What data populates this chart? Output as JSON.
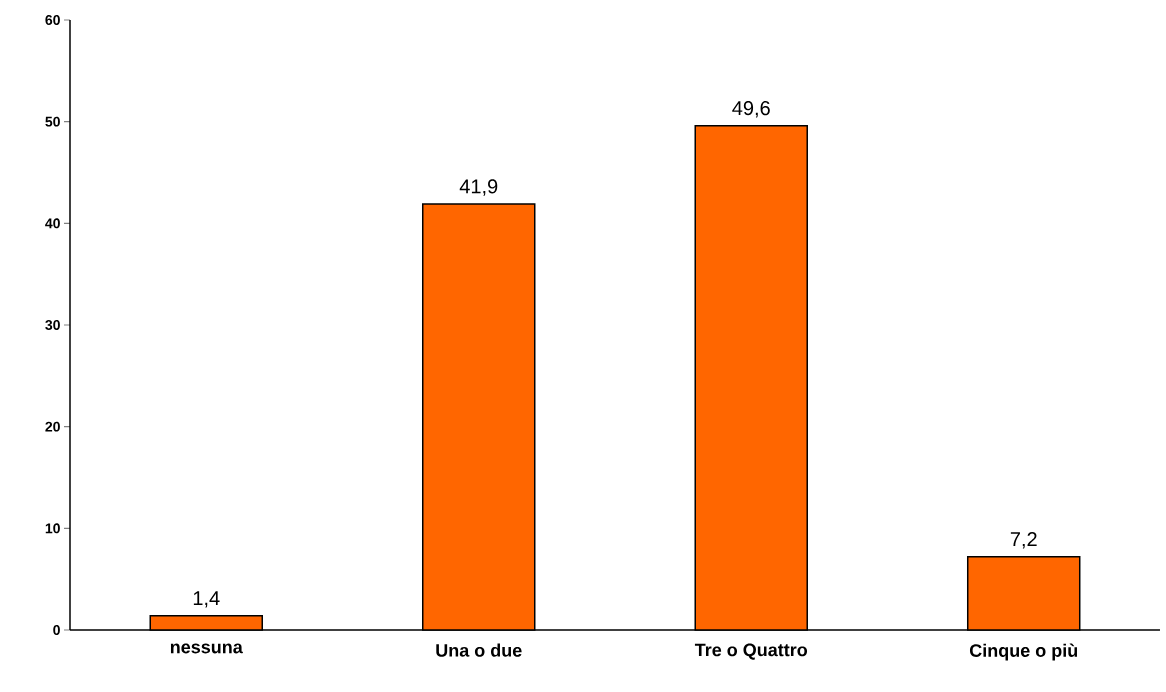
{
  "chart_data": {
    "type": "bar",
    "categories": [
      "nessuna",
      "Una o due",
      "Tre o Quattro",
      "Cinque o più"
    ],
    "values": [
      1.4,
      41.9,
      49.6,
      7.2
    ],
    "value_labels": [
      "1,4",
      "41,9",
      "49,6",
      "7,2"
    ],
    "color": "#ff6600",
    "ylim": [
      0,
      60
    ],
    "yticks": [
      0,
      10,
      20,
      30,
      40,
      50,
      60
    ]
  }
}
